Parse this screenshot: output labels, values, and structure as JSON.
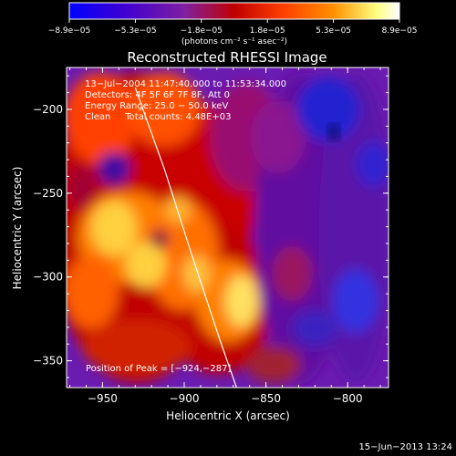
{
  "chart_data": {
    "type": "heatmap",
    "title": "Reconstructed RHESSI Image",
    "xlabel": "Heliocentric X (arcsec)",
    "ylabel": "Heliocentric Y (arcsec)",
    "xlim": [
      -972,
      -775
    ],
    "ylim": [
      -366,
      -175
    ],
    "xticks": [
      -950,
      -900,
      -850,
      -800
    ],
    "yticks": [
      -200,
      -250,
      -300,
      -350
    ],
    "xtick_labels": [
      "−950",
      "−900",
      "−850",
      "−800"
    ],
    "ytick_labels": [
      "−200",
      "−250",
      "−300",
      "−350"
    ],
    "colorbar": {
      "range": [
        -8.9e-05,
        8.9e-05
      ],
      "tick_labels": [
        "−8.9e−05",
        "−5.3e−05",
        "−1.8e−05",
        "1.8e−05",
        "5.3e−05",
        "8.9e−05"
      ],
      "unit_label": "(photons cm⁻² s⁻¹ asec⁻²)",
      "colormap": [
        "#0000ff",
        "#4000d0",
        "#8020a0",
        "#c00000",
        "#ff4000",
        "#ff9000",
        "#ffff80",
        "#ffffff"
      ]
    },
    "info_lines": [
      "13−Jul−2004 11:47:40.000 to 11:53:34.000",
      "Detectors: 4F 5F 6F 7F 8F, Att 0",
      "Energy Range: 25.0 − 50.0 keV",
      "Clean     Total counts: 4.48E+03"
    ],
    "peak_label": "Position of Peak = [−924,−287]",
    "peak": [
      -924,
      -287
    ],
    "limb_arc": [
      [
        -930,
        -187
      ],
      [
        -912,
        -236
      ],
      [
        -895,
        -288
      ],
      [
        -878,
        -338
      ],
      [
        -868,
        -366
      ]
    ]
  },
  "timestamp": "15−Jun−2013 13:24"
}
